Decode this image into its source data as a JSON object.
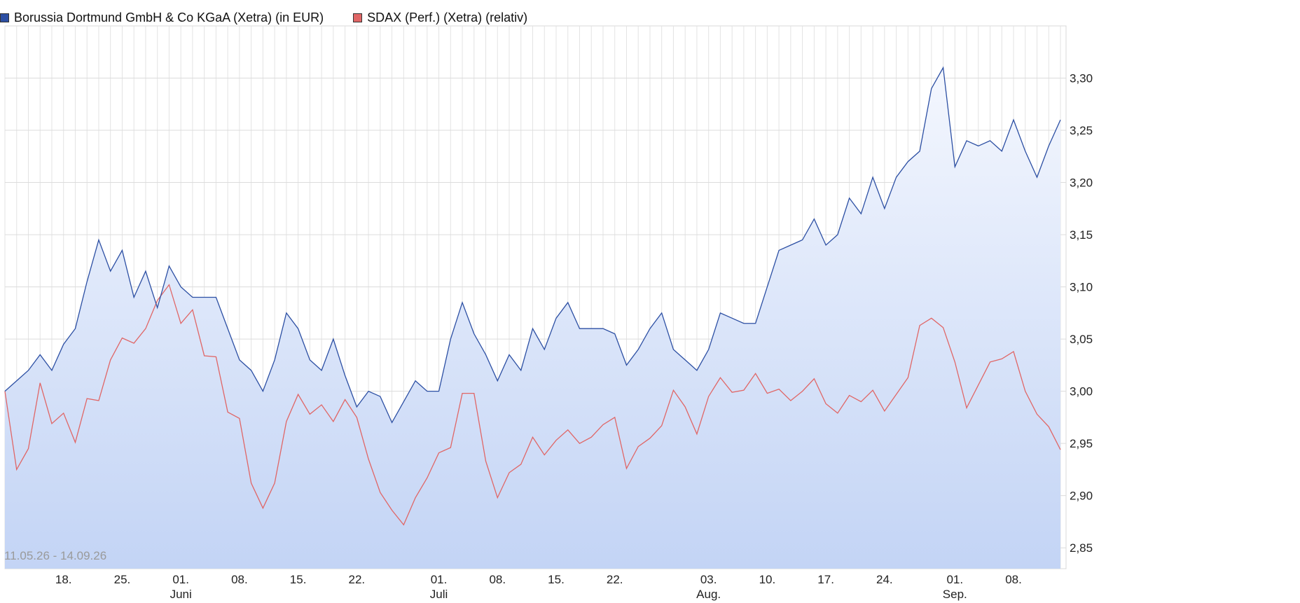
{
  "legend": {
    "series1": "Borussia Dortmund GmbH & Co KGaA (Xetra) (in EUR)",
    "series2": "SDAX (Perf.) (Xetra) (relativ)",
    "series1_color": "#2c4fa3",
    "series2_color": "#e06666"
  },
  "date_range": "11.05.26 - 14.09.26",
  "chart_data": {
    "type": "line",
    "ylim": [
      2.83,
      3.35
    ],
    "y_ticks": [
      "2,85",
      "2,90",
      "2,95",
      "3,00",
      "3,05",
      "3,10",
      "3,15",
      "3,20",
      "3,25",
      "3,30"
    ],
    "x_ticks": [
      {
        "label": "18.",
        "month": ""
      },
      {
        "label": "25.",
        "month": ""
      },
      {
        "label": "01.",
        "month": "Juni"
      },
      {
        "label": "08.",
        "month": ""
      },
      {
        "label": "15.",
        "month": ""
      },
      {
        "label": "22.",
        "month": ""
      },
      {
        "label": "01.",
        "month": "Juli"
      },
      {
        "label": "08.",
        "month": ""
      },
      {
        "label": "15.",
        "month": ""
      },
      {
        "label": "22.",
        "month": ""
      },
      {
        "label": "03.",
        "month": "Aug."
      },
      {
        "label": "10.",
        "month": ""
      },
      {
        "label": "17.",
        "month": ""
      },
      {
        "label": "24.",
        "month": ""
      },
      {
        "label": "01.",
        "month": "Sep."
      },
      {
        "label": "08.",
        "month": ""
      }
    ],
    "x_tick_index": [
      5,
      10,
      15,
      20,
      25,
      30,
      37,
      42,
      47,
      52,
      60,
      65,
      70,
      75,
      81,
      86
    ],
    "grid": true,
    "legend_position": "top-left",
    "series": [
      {
        "name": "Borussia Dortmund GmbH & Co KGaA (Xetra) (in EUR)",
        "color": "#2c4fa3",
        "fill": true,
        "values": [
          3.0,
          3.01,
          3.02,
          3.035,
          3.02,
          3.045,
          3.06,
          3.105,
          3.145,
          3.115,
          3.135,
          3.09,
          3.115,
          3.08,
          3.12,
          3.1,
          3.09,
          3.09,
          3.09,
          3.06,
          3.03,
          3.02,
          3.0,
          3.03,
          3.075,
          3.06,
          3.03,
          3.02,
          3.05,
          3.015,
          2.985,
          3.0,
          2.995,
          2.97,
          2.99,
          3.01,
          3.0,
          3.0,
          3.05,
          3.085,
          3.055,
          3.035,
          3.01,
          3.035,
          3.02,
          3.06,
          3.04,
          3.07,
          3.085,
          3.06,
          3.06,
          3.06,
          3.055,
          3.025,
          3.04,
          3.06,
          3.075,
          3.04,
          3.03,
          3.02,
          3.04,
          3.075,
          3.07,
          3.065,
          3.065,
          3.1,
          3.135,
          3.14,
          3.145,
          3.165,
          3.14,
          3.15,
          3.185,
          3.17,
          3.205,
          3.175,
          3.205,
          3.22,
          3.23,
          3.29,
          3.31,
          3.215,
          3.24,
          3.235,
          3.24,
          3.23,
          3.26,
          3.23,
          3.205,
          3.235,
          3.26
        ]
      },
      {
        "name": "SDAX (Perf.) (Xetra) (relativ)",
        "color": "#e06666",
        "fill": false,
        "values": [
          3.0,
          2.925,
          2.945,
          3.008,
          2.969,
          2.979,
          2.951,
          2.993,
          2.991,
          3.03,
          3.051,
          3.046,
          3.06,
          3.087,
          3.102,
          3.065,
          3.078,
          3.034,
          3.033,
          2.98,
          2.974,
          2.912,
          2.888,
          2.912,
          2.971,
          2.997,
          2.978,
          2.987,
          2.971,
          2.992,
          2.975,
          2.935,
          2.903,
          2.886,
          2.872,
          2.898,
          2.917,
          2.941,
          2.946,
          2.998,
          2.998,
          2.933,
          2.898,
          2.922,
          2.93,
          2.956,
          2.939,
          2.953,
          2.963,
          2.95,
          2.956,
          2.968,
          2.975,
          2.926,
          2.947,
          2.955,
          2.967,
          3.001,
          2.985,
          2.959,
          2.995,
          3.013,
          2.999,
          3.001,
          3.017,
          2.998,
          3.002,
          2.991,
          3.0,
          3.012,
          2.988,
          2.979,
          2.996,
          2.99,
          3.001,
          2.981,
          2.997,
          3.013,
          3.063,
          3.07,
          3.061,
          3.028,
          2.984,
          3.006,
          3.028,
          3.031,
          3.038,
          3.0,
          2.978,
          2.966,
          2.944
        ]
      }
    ]
  }
}
